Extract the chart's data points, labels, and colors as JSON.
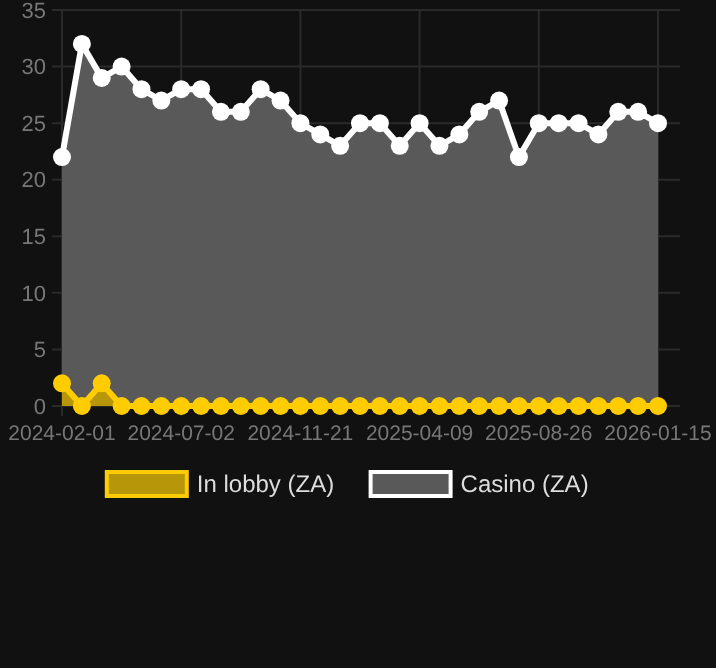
{
  "chart_data": {
    "type": "area",
    "categories": [
      "2024-02-01",
      null,
      null,
      null,
      null,
      null,
      "2024-07-02",
      null,
      null,
      null,
      null,
      null,
      "2024-11-21",
      null,
      null,
      null,
      null,
      null,
      "2025-04-09",
      null,
      null,
      null,
      null,
      null,
      "2025-08-26",
      null,
      null,
      null,
      null,
      null,
      "2026-01-15"
    ],
    "series": [
      {
        "name": "In lobby (ZA)",
        "color": "#ffcc00",
        "values": [
          2,
          0,
          2,
          0,
          0,
          0,
          0,
          0,
          0,
          0,
          0,
          0,
          0,
          0,
          0,
          0,
          0,
          0,
          0,
          0,
          0,
          0,
          0,
          0,
          0,
          0,
          0,
          0,
          0,
          0,
          0
        ]
      },
      {
        "name": "Casino (ZA)",
        "color": "#ffffff",
        "values": [
          22,
          32,
          29,
          30,
          28,
          27,
          28,
          28,
          26,
          26,
          28,
          27,
          25,
          24,
          23,
          25,
          25,
          23,
          25,
          23,
          24,
          26,
          27,
          22,
          25,
          25,
          25,
          24,
          26,
          26,
          25
        ]
      }
    ],
    "ylim": [
      0,
      35
    ],
    "yticks": [
      0,
      5,
      10,
      15,
      20,
      25,
      30,
      35
    ],
    "grid": true,
    "legend": "bottom",
    "marker": "circle"
  }
}
